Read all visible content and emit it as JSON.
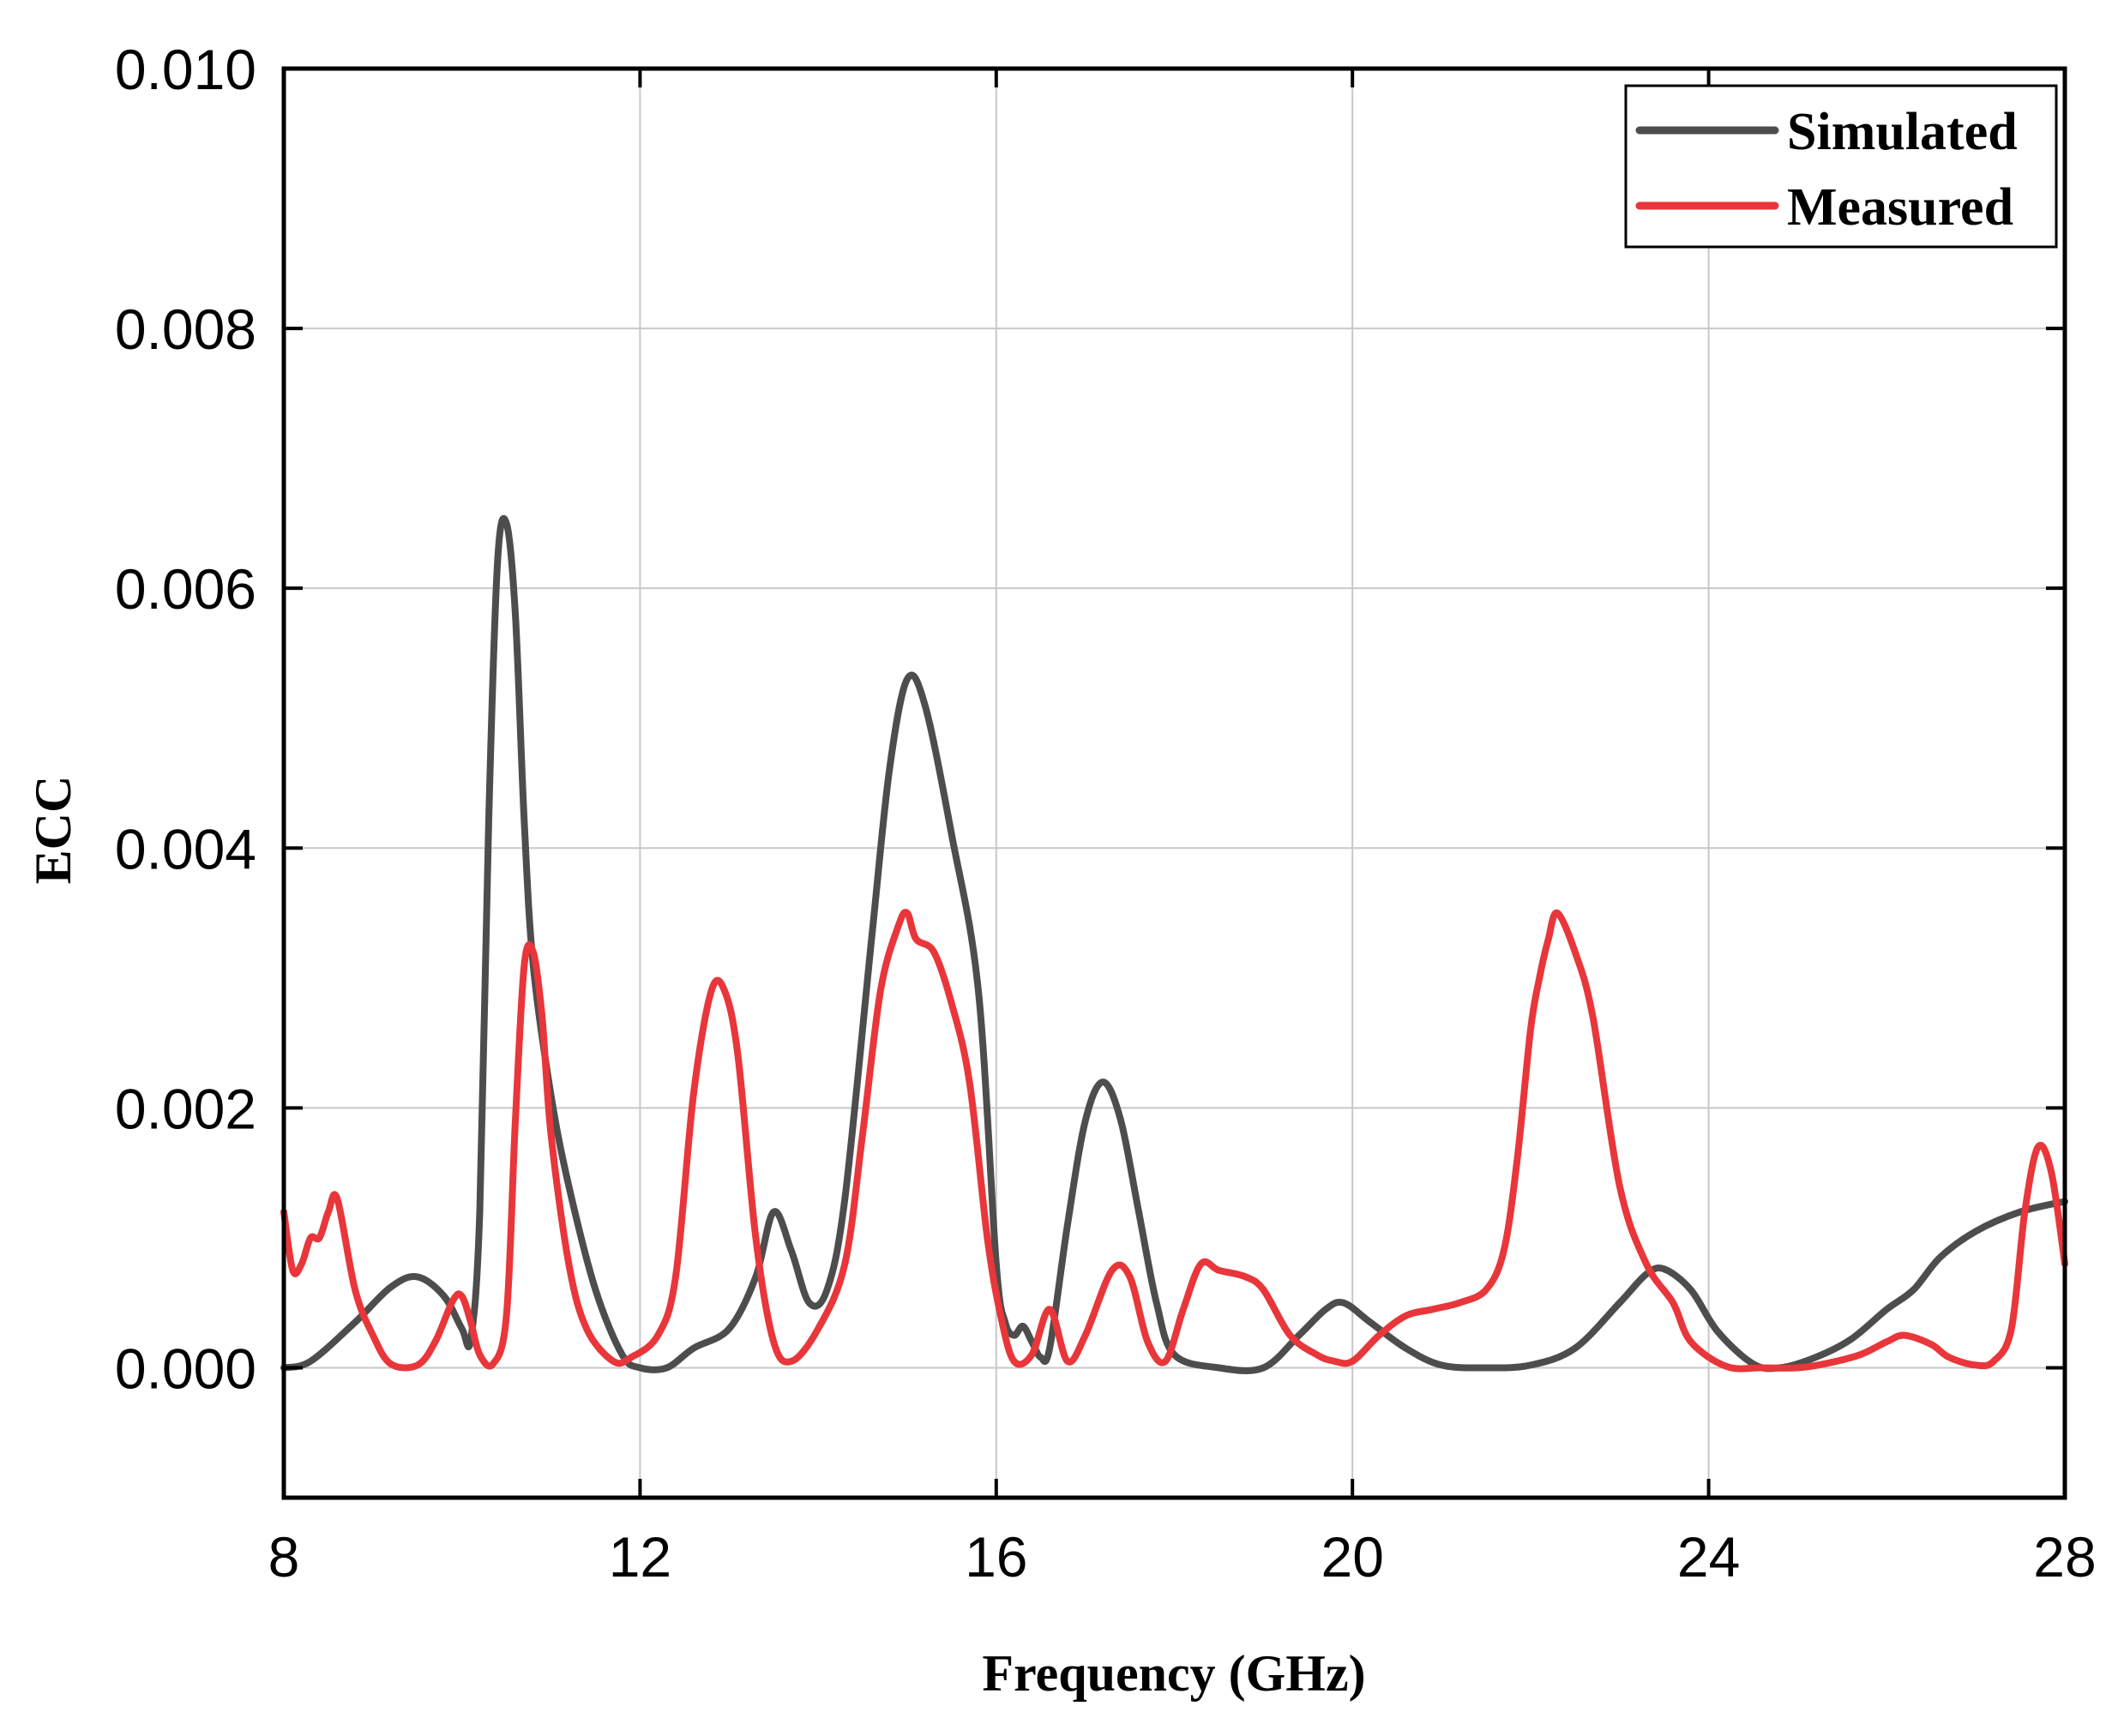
{
  "chart_data": {
    "type": "line",
    "title": "",
    "xlabel": "Frequency (GHz)",
    "ylabel": "ECC",
    "xlim": [
      8,
      28
    ],
    "ylim": [
      -0.001,
      0.01
    ],
    "xticks": [
      8,
      12,
      16,
      20,
      24,
      28
    ],
    "xtick_labels": [
      "8",
      "12",
      "16",
      "20",
      "24",
      "28"
    ],
    "yticks": [
      0,
      0.002,
      0.004,
      0.006,
      0.008,
      0.01
    ],
    "ytick_labels": [
      "0.000",
      "0.002",
      "0.004",
      "0.006",
      "0.008",
      "0.010"
    ],
    "grid": true,
    "legend_position": "top-right",
    "series": [
      {
        "name": "Simulated",
        "color": "#4d4d4d",
        "x": [
          8.0,
          8.3,
          8.8,
          9.2,
          9.5,
          9.8,
          10.0,
          10.1,
          10.2,
          10.3,
          10.4,
          10.5,
          10.6,
          10.7,
          10.8,
          11.0,
          11.2,
          11.5,
          11.8,
          12.0,
          12.3,
          12.6,
          13.0,
          13.3,
          13.5,
          13.7,
          13.9,
          14.1,
          14.3,
          14.6,
          14.8,
          15.0,
          15.2,
          15.5,
          15.8,
          16.0,
          16.1,
          16.2,
          16.3,
          16.4,
          16.5,
          16.6,
          16.8,
          17.0,
          17.2,
          17.4,
          17.6,
          17.8,
          18.0,
          18.5,
          19.0,
          19.4,
          19.7,
          19.9,
          20.2,
          20.6,
          21.0,
          21.5,
          22.0,
          22.5,
          23.0,
          23.3,
          23.5,
          23.8,
          24.1,
          24.5,
          24.8,
          25.2,
          25.6,
          26.0,
          26.3,
          26.6,
          27.0,
          27.5,
          28.0
        ],
        "values": [
          0.0,
          5e-05,
          0.00035,
          0.00062,
          0.0007,
          0.00055,
          0.0003,
          0.00022,
          0.0012,
          0.0042,
          0.0062,
          0.0065,
          0.0058,
          0.0042,
          0.0031,
          0.0021,
          0.0014,
          0.0006,
          0.0001,
          0.0,
          0.0,
          0.00015,
          0.0003,
          0.0007,
          0.0012,
          0.0009,
          0.0005,
          0.0006,
          0.0013,
          0.0033,
          0.0046,
          0.0053,
          0.0051,
          0.0041,
          0.0029,
          0.0008,
          0.00035,
          0.00025,
          0.00032,
          0.0002,
          8e-05,
          0.00015,
          0.0011,
          0.0019,
          0.0022,
          0.0019,
          0.0012,
          0.0005,
          0.0001,
          0.0,
          0.0,
          0.00025,
          0.00045,
          0.0005,
          0.00035,
          0.00015,
          2e-05,
          0.0,
          2e-05,
          0.00015,
          0.0005,
          0.00072,
          0.00076,
          0.0006,
          0.00028,
          3e-05,
          0.0,
          8e-05,
          0.00022,
          0.00045,
          0.0006,
          0.00085,
          0.00105,
          0.0012,
          0.00128
        ]
      },
      {
        "name": "Measured",
        "color": "#e8363a",
        "x": [
          8.0,
          8.1,
          8.2,
          8.3,
          8.4,
          8.5,
          8.6,
          8.8,
          9.0,
          9.2,
          9.5,
          9.7,
          9.9,
          10.0,
          10.1,
          10.2,
          10.35,
          10.5,
          10.6,
          10.7,
          10.8,
          10.9,
          11.0,
          11.2,
          11.4,
          11.7,
          11.9,
          12.2,
          12.4,
          12.6,
          12.8,
          12.95,
          13.1,
          13.3,
          13.5,
          13.7,
          14.0,
          14.3,
          14.5,
          14.7,
          14.9,
          15.0,
          15.1,
          15.3,
          15.5,
          15.7,
          15.9,
          16.05,
          16.2,
          16.4,
          16.6,
          16.8,
          17.0,
          17.3,
          17.5,
          17.7,
          17.9,
          18.1,
          18.3,
          18.5,
          18.8,
          19.0,
          19.3,
          19.6,
          19.8,
          20.0,
          20.3,
          20.6,
          20.9,
          21.2,
          21.5,
          21.7,
          21.85,
          22.0,
          22.1,
          22.2,
          22.3,
          22.5,
          22.7,
          23.0,
          23.3,
          23.6,
          23.8,
          24.2,
          24.6,
          25.0,
          25.3,
          25.7,
          26.0,
          26.2,
          26.5,
          26.7,
          27.0,
          27.2,
          27.4,
          27.55,
          27.7,
          27.85,
          28.0
        ],
        "values": [
          0.0012,
          0.00075,
          0.0008,
          0.001,
          0.001,
          0.0012,
          0.0013,
          0.0006,
          0.00025,
          3e-05,
          2e-05,
          0.0002,
          0.00052,
          0.00055,
          0.00035,
          0.0001,
          3e-05,
          0.0004,
          0.0019,
          0.0031,
          0.0032,
          0.0027,
          0.0018,
          0.0008,
          0.0003,
          5e-05,
          8e-05,
          0.00025,
          0.0007,
          0.0021,
          0.0029,
          0.0029,
          0.0024,
          0.001,
          0.0002,
          5e-05,
          0.0003,
          0.0008,
          0.0018,
          0.0029,
          0.0034,
          0.0035,
          0.0033,
          0.0032,
          0.0028,
          0.0022,
          0.001,
          0.0004,
          5e-05,
          0.0001,
          0.00045,
          5e-05,
          0.00025,
          0.00075,
          0.0007,
          0.0002,
          5e-05,
          0.00045,
          0.0008,
          0.00075,
          0.0007,
          0.0006,
          0.00025,
          0.0001,
          5e-05,
          5e-05,
          0.00025,
          0.0004,
          0.00045,
          0.0005,
          0.0006,
          0.0009,
          0.0016,
          0.0026,
          0.003,
          0.0033,
          0.0035,
          0.0032,
          0.0027,
          0.0014,
          0.0008,
          0.0005,
          0.0002,
          1e-05,
          0.0,
          0.0,
          3e-05,
          0.0001,
          0.0002,
          0.00025,
          0.00018,
          8e-05,
          2e-05,
          5e-05,
          0.0003,
          0.0012,
          0.0017,
          0.0015,
          0.0008
        ]
      }
    ]
  }
}
